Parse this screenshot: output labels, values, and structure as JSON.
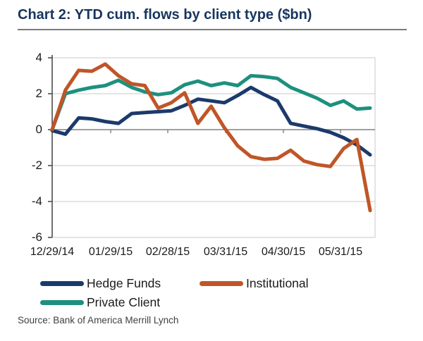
{
  "title": "Chart 2: YTD cum. flows by client type ($bn)",
  "source": "Source: Bank of America Merrill Lynch",
  "colors": {
    "title_navy": "#17355f",
    "hedge_funds": "#1b3a6b",
    "institutional": "#c05527",
    "private_client": "#1d907f",
    "gridline": "#c9c9c9",
    "zero_line": "#808080",
    "axis": "#4d4d4d"
  },
  "chart_data": {
    "type": "line",
    "title": "Chart 2: YTD cum. flows by client type ($bn)",
    "xlabel": "",
    "ylabel": "",
    "x_tick_labels": [
      "12/29/14",
      "01/29/15",
      "02/28/15",
      "03/31/15",
      "04/30/15",
      "05/31/15"
    ],
    "y_ticks": [
      4,
      2,
      0,
      -2,
      -4,
      -6
    ],
    "ylim": [
      -6,
      4
    ],
    "grid": true,
    "legend_position": "bottom",
    "frequency": "weekly",
    "n_points": 25,
    "series": [
      {
        "name": "Hedge Funds",
        "color": "#1b3a6b",
        "values": [
          -0.05,
          -0.25,
          0.65,
          0.6,
          0.45,
          0.35,
          0.9,
          0.95,
          1.0,
          1.05,
          1.35,
          1.7,
          1.6,
          1.5,
          1.9,
          2.35,
          1.95,
          1.6,
          0.35,
          0.2,
          0.05,
          -0.15,
          -0.45,
          -0.85,
          -1.4
        ]
      },
      {
        "name": "Institutional",
        "color": "#c05527",
        "values": [
          0.0,
          2.2,
          3.3,
          3.25,
          3.65,
          3.0,
          2.55,
          2.45,
          1.2,
          1.5,
          2.05,
          0.35,
          1.3,
          0.1,
          -0.9,
          -1.5,
          -1.65,
          -1.6,
          -1.15,
          -1.75,
          -1.95,
          -2.05,
          -1.05,
          -0.55,
          -4.5
        ]
      },
      {
        "name": "Private Client",
        "color": "#1d907f",
        "values": [
          0.0,
          2.0,
          2.2,
          2.35,
          2.45,
          2.75,
          2.35,
          2.1,
          1.95,
          2.05,
          2.5,
          2.7,
          2.45,
          2.6,
          2.45,
          3.0,
          2.95,
          2.85,
          2.35,
          2.05,
          1.75,
          1.35,
          1.6,
          1.15,
          1.2
        ]
      }
    ]
  },
  "legend": {
    "items": [
      {
        "label": "Hedge Funds",
        "series": 0
      },
      {
        "label": "Institutional",
        "series": 1
      },
      {
        "label": "Private Client",
        "series": 2
      }
    ]
  }
}
